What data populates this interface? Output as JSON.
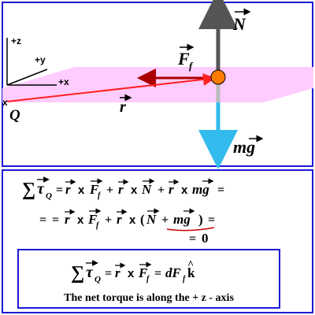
{
  "diagram": {
    "axes": {
      "z_label": "+z",
      "y_label": "+y",
      "x_label": "+x"
    },
    "point_label": "Q",
    "point_marker": "x",
    "vectors": {
      "normal": {
        "symbol": "N",
        "color": "#555555"
      },
      "friction": {
        "symbol": "F",
        "subscript": "f",
        "color": "#aa0000"
      },
      "position": {
        "symbol": "r",
        "color": "#ff2020"
      },
      "weight": {
        "symbol": "mg",
        "color": "#33bbee"
      }
    },
    "plane_color": "#ffccff",
    "contact_point_color": "#ff7a00"
  },
  "equations": {
    "sum_symbol": "∑",
    "tau": "τ",
    "sub_Q": "Q",
    "cross": "x",
    "plus": "+",
    "equals": "=",
    "zero": "0",
    "dF": "dF",
    "k_unit": "k",
    "hat": "^"
  },
  "conclusion": "The net torque is along the + z - axis"
}
